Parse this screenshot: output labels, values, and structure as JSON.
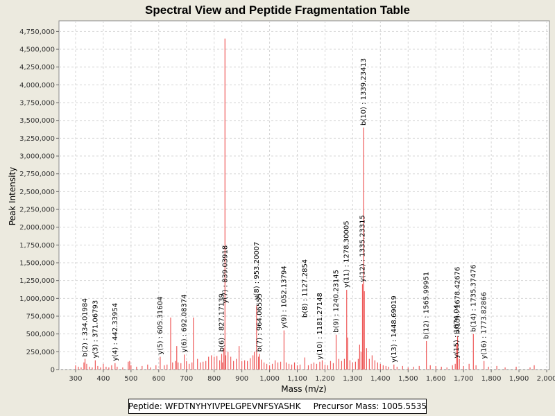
{
  "chart_data": {
    "type": "bar",
    "title": "Spectral View and Peptide Fragmentation Table",
    "xlabel": "Mass (m/z)",
    "ylabel": "Peak Intensity",
    "xlim": [
      240,
      2010
    ],
    "ylim": [
      0,
      4900000
    ],
    "x_ticks": [
      300,
      400,
      500,
      600,
      700,
      800,
      900,
      1000,
      1100,
      1200,
      1300,
      1400,
      1500,
      1600,
      1700,
      1800,
      1900,
      2000
    ],
    "x_tick_labels": [
      "300",
      "400",
      "500",
      "600",
      "700",
      "800",
      "900",
      "1,000",
      "1,100",
      "1,200",
      "1,300",
      "1,400",
      "1,500",
      "1,600",
      "1,700",
      "1,800",
      "1,900",
      "2,000"
    ],
    "y_ticks": [
      0,
      250000,
      500000,
      750000,
      1000000,
      1250000,
      1500000,
      1750000,
      2000000,
      2250000,
      2500000,
      2750000,
      3000000,
      3250000,
      3500000,
      3750000,
      4000000,
      4250000,
      4500000,
      4750000
    ],
    "y_tick_labels": [
      "0",
      "250,000",
      "500,000",
      "750,000",
      "1,000,000",
      "1,250,000",
      "1,500,000",
      "1,750,000",
      "2,000,000",
      "2,250,000",
      "2,500,000",
      "2,750,000",
      "3,000,000",
      "3,250,000",
      "3,500,000",
      "3,750,000",
      "4,000,000",
      "4,250,000",
      "4,500,000",
      "4,750,000"
    ],
    "grid": true,
    "series_color": "#ee5a5a",
    "peaks": [
      [
        300,
        60000
      ],
      [
        310,
        40000
      ],
      [
        320,
        30000
      ],
      [
        330,
        100000
      ],
      [
        334.02,
        150000
      ],
      [
        340,
        80000
      ],
      [
        350,
        40000
      ],
      [
        360,
        30000
      ],
      [
        371.07,
        130000
      ],
      [
        380,
        50000
      ],
      [
        390,
        30000
      ],
      [
        400,
        80000
      ],
      [
        410,
        40000
      ],
      [
        420,
        30000
      ],
      [
        430,
        60000
      ],
      [
        442.34,
        90000
      ],
      [
        450,
        40000
      ],
      [
        470,
        30000
      ],
      [
        490,
        110000
      ],
      [
        495,
        120000
      ],
      [
        500,
        60000
      ],
      [
        520,
        40000
      ],
      [
        540,
        50000
      ],
      [
        560,
        70000
      ],
      [
        570,
        30000
      ],
      [
        590,
        60000
      ],
      [
        605.32,
        180000
      ],
      [
        620,
        60000
      ],
      [
        630,
        70000
      ],
      [
        643,
        730000
      ],
      [
        650,
        100000
      ],
      [
        660,
        120000
      ],
      [
        665,
        330000
      ],
      [
        670,
        100000
      ],
      [
        680,
        90000
      ],
      [
        692.08,
        210000
      ],
      [
        700,
        120000
      ],
      [
        710,
        80000
      ],
      [
        720,
        100000
      ],
      [
        725,
        730000
      ],
      [
        740,
        150000
      ],
      [
        750,
        100000
      ],
      [
        760,
        110000
      ],
      [
        770,
        120000
      ],
      [
        780,
        180000
      ],
      [
        790,
        200000
      ],
      [
        800,
        180000
      ],
      [
        810,
        190000
      ],
      [
        820,
        130000
      ],
      [
        827.17,
        220000
      ],
      [
        830,
        100000
      ],
      [
        835,
        300000
      ],
      [
        839.04,
        4650000
      ],
      [
        842,
        200000
      ],
      [
        850,
        250000
      ],
      [
        860,
        180000
      ],
      [
        870,
        120000
      ],
      [
        880,
        150000
      ],
      [
        890,
        330000
      ],
      [
        900,
        120000
      ],
      [
        910,
        130000
      ],
      [
        920,
        120000
      ],
      [
        930,
        160000
      ],
      [
        940,
        200000
      ],
      [
        945,
        250000
      ],
      [
        953.2,
        900000
      ],
      [
        960,
        180000
      ],
      [
        964.07,
        220000
      ],
      [
        970,
        140000
      ],
      [
        980,
        100000
      ],
      [
        990,
        80000
      ],
      [
        1000,
        60000
      ],
      [
        1010,
        80000
      ],
      [
        1020,
        130000
      ],
      [
        1030,
        100000
      ],
      [
        1040,
        110000
      ],
      [
        1052.14,
        550000
      ],
      [
        1060,
        100000
      ],
      [
        1070,
        80000
      ],
      [
        1080,
        70000
      ],
      [
        1090,
        100000
      ],
      [
        1100,
        60000
      ],
      [
        1110,
        70000
      ],
      [
        1127.29,
        170000
      ],
      [
        1140,
        60000
      ],
      [
        1150,
        80000
      ],
      [
        1160,
        100000
      ],
      [
        1170,
        80000
      ],
      [
        1181.27,
        110000
      ],
      [
        1190,
        130000
      ],
      [
        1200,
        70000
      ],
      [
        1210,
        60000
      ],
      [
        1220,
        120000
      ],
      [
        1230,
        90000
      ],
      [
        1240.23,
        490000
      ],
      [
        1250,
        150000
      ],
      [
        1260,
        120000
      ],
      [
        1270,
        150000
      ],
      [
        1278.3,
        1120000
      ],
      [
        1282,
        450000
      ],
      [
        1290,
        130000
      ],
      [
        1300,
        100000
      ],
      [
        1310,
        110000
      ],
      [
        1320,
        150000
      ],
      [
        1325,
        350000
      ],
      [
        1330,
        250000
      ],
      [
        1335.23,
        1200000
      ],
      [
        1339.23,
        3400000
      ],
      [
        1342,
        1100000
      ],
      [
        1350,
        300000
      ],
      [
        1360,
        150000
      ],
      [
        1370,
        200000
      ],
      [
        1380,
        130000
      ],
      [
        1390,
        100000
      ],
      [
        1400,
        80000
      ],
      [
        1410,
        60000
      ],
      [
        1420,
        50000
      ],
      [
        1430,
        40000
      ],
      [
        1448.69,
        70000
      ],
      [
        1460,
        40000
      ],
      [
        1480,
        50000
      ],
      [
        1500,
        30000
      ],
      [
        1520,
        40000
      ],
      [
        1540,
        50000
      ],
      [
        1565.99,
        400000
      ],
      [
        1580,
        60000
      ],
      [
        1600,
        50000
      ],
      [
        1620,
        40000
      ],
      [
        1640,
        30000
      ],
      [
        1660,
        60000
      ],
      [
        1670,
        80000
      ],
      [
        1675,
        350000
      ],
      [
        1678.43,
        470000
      ],
      [
        1685,
        150000
      ],
      [
        1700,
        50000
      ],
      [
        1720,
        80000
      ],
      [
        1735.37,
        500000
      ],
      [
        1745,
        60000
      ],
      [
        1773.83,
        120000
      ],
      [
        1790,
        40000
      ],
      [
        1820,
        50000
      ],
      [
        1850,
        30000
      ],
      [
        1890,
        40000
      ],
      [
        1940,
        30000
      ],
      [
        1955,
        60000
      ]
    ],
    "annotations": [
      {
        "x": 334.02,
        "y": 150000,
        "text": "b(2) : 334.01984"
      },
      {
        "x": 371.07,
        "y": 130000,
        "text": "y(3) : 371.06793"
      },
      {
        "x": 442.34,
        "y": 90000,
        "text": "y(4) : 442.33954"
      },
      {
        "x": 605.32,
        "y": 180000,
        "text": "y(5) : 605.31604"
      },
      {
        "x": 692.08,
        "y": 210000,
        "text": "y(6) : 692.08374"
      },
      {
        "x": 827.17,
        "y": 220000,
        "text": "b(6) : 827.17139"
      },
      {
        "x": 839.04,
        "y": 900000,
        "text": "y(7) : 839.03918"
      },
      {
        "x": 953.2,
        "y": 950000,
        "text": "y(8) : 953.20007"
      },
      {
        "x": 964.07,
        "y": 220000,
        "text": "b(7) : 964.06555"
      },
      {
        "x": 1052.14,
        "y": 550000,
        "text": "y(9) : 1052.13794"
      },
      {
        "x": 1127.29,
        "y": 700000,
        "text": "b(8) : 1127.2854"
      },
      {
        "x": 1181.27,
        "y": 110000,
        "text": "y(10) : 1181.27148"
      },
      {
        "x": 1240.23,
        "y": 490000,
        "text": "b(9) : 1240.23145"
      },
      {
        "x": 1278.3,
        "y": 1120000,
        "text": "y(11) : 1278.30005"
      },
      {
        "x": 1335.23,
        "y": 1200000,
        "text": "y(12) : 1335.23315"
      },
      {
        "x": 1339.23,
        "y": 3400000,
        "text": "b(10) : 1339.23413"
      },
      {
        "x": 1448.69,
        "y": 70000,
        "text": "y(13) : 1448.69019"
      },
      {
        "x": 1565.99,
        "y": 400000,
        "text": "b(12) : 1565.99951"
      },
      {
        "x": 1675,
        "y": 130000,
        "text": "y(15) : 1674.04"
      },
      {
        "x": 1678.43,
        "y": 470000,
        "text": "b(13) : 1678.42676"
      },
      {
        "x": 1735.37,
        "y": 500000,
        "text": "b(14) : 1735.37476"
      },
      {
        "x": 1773.83,
        "y": 120000,
        "text": "y(16) : 1773.82866"
      }
    ]
  },
  "footer": {
    "peptide": "Peptide: WFDTNYHYIVPELGPEVNFSYASHK",
    "precursor": "Precursor Mass: 1005.5535"
  }
}
